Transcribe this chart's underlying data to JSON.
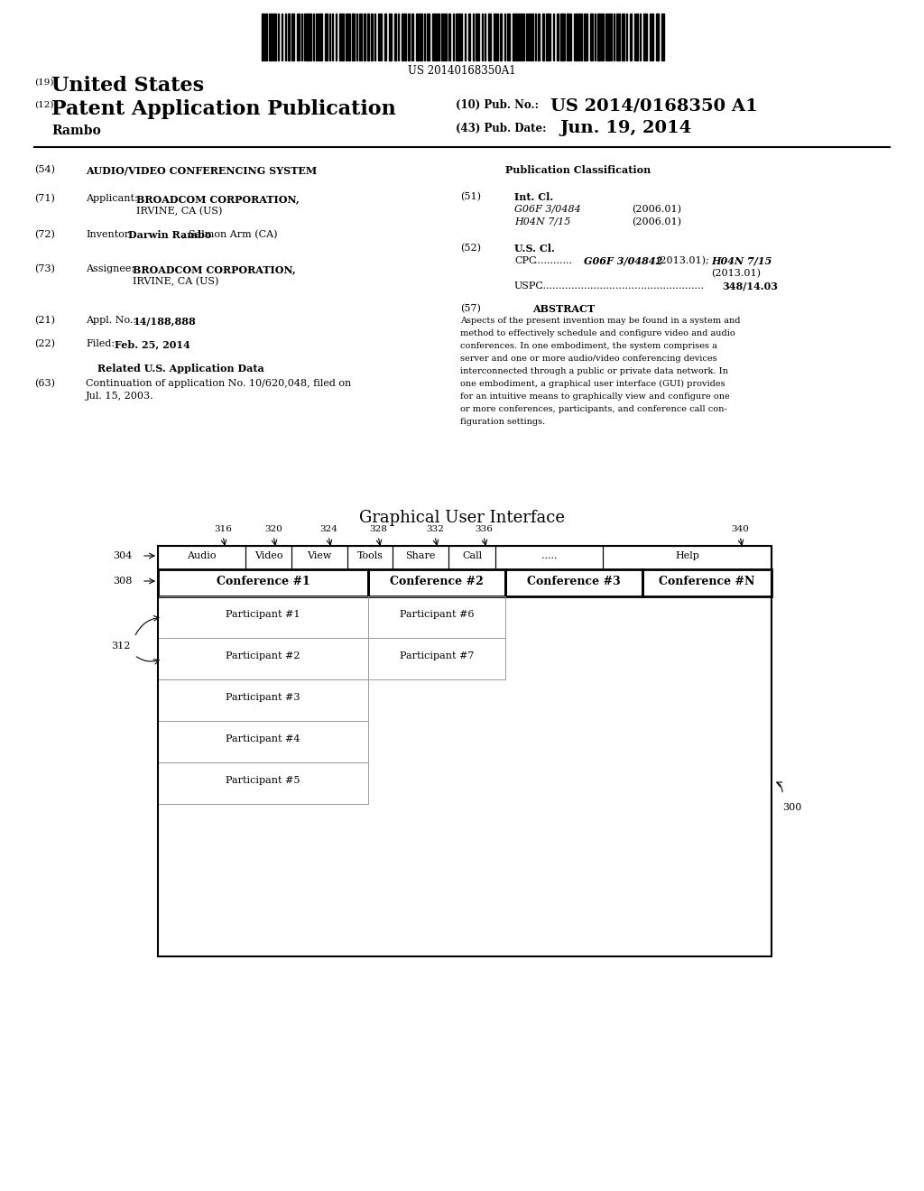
{
  "bg_color": "#ffffff",
  "barcode_text": "US 20140168350A1",
  "title_19_text": "United States",
  "title_12_text": "Patent Application Publication",
  "pub_no_label": "(10) Pub. No.:",
  "pub_no_value": "US 2014/0168350 A1",
  "pub_date_label": "(43) Pub. Date:",
  "pub_date_value": "Jun. 19, 2014",
  "inventor_surname": "Rambo",
  "section54_text": "AUDIO/VIDEO CONFERENCING SYSTEM",
  "pub_class_header": "Publication Classification",
  "section71_title": "Applicant:",
  "section71_name": "BROADCOM CORPORATION,",
  "section71_addr": "IRVINE, CA (US)",
  "section51_class1": "G06F 3/0484",
  "section51_year1": "(2006.01)",
  "section51_class2": "H04N 7/15",
  "section51_year2": "(2006.01)",
  "section72_title": "Inventor:",
  "section73_title": "Assignee:",
  "section73_name": "BROADCOM CORPORATION,",
  "section73_addr": "IRVINE, CA (US)",
  "section21_value": "14/188,888",
  "section22_value": "Feb. 25, 2014",
  "related_header": "Related U.S. Application Data",
  "gui_title": "Graphical User Interface",
  "menu_numbers": [
    "316",
    "320",
    "324",
    "328",
    "332",
    "336",
    "340"
  ],
  "menu_items": [
    "Audio",
    "Video",
    "View",
    "Tools",
    "Share",
    "Call",
    ".....",
    "Help"
  ],
  "conf_labels": [
    "Conference #1",
    "Conference #2",
    "Conference #3",
    "Conference #N"
  ],
  "participants_col1": [
    "Participant #1",
    "Participant #2",
    "Participant #3",
    "Participant #4",
    "Participant #5"
  ],
  "participants_col2": [
    "Participant #6",
    "Participant #7"
  ],
  "abstract_lines": [
    "Aspects of the present invention may be found in a system and",
    "method to effectively schedule and configure video and audio",
    "conferences. In one embodiment, the system comprises a",
    "server and one or more audio/video conferencing devices",
    "interconnected through a public or private data network. In",
    "one embodiment, a graphical user interface (GUI) provides",
    "for an intuitive means to graphically view and configure one",
    "or more conferences, participants, and conference call con-",
    "figuration settings."
  ]
}
